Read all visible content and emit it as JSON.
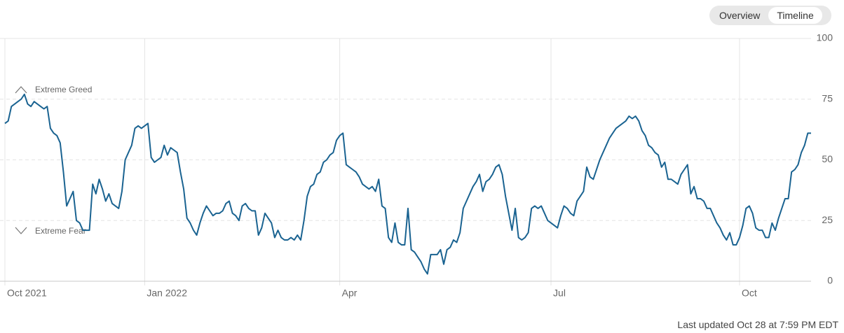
{
  "toggle": [
    "Overview",
    "Timeline"
  ],
  "chart_data": {
    "type": "line",
    "color": "#1a6391",
    "values": [
      65,
      66,
      72,
      73,
      74,
      75,
      77,
      73,
      72,
      74,
      73,
      72,
      71,
      72,
      63,
      61,
      60,
      57,
      45,
      31,
      34,
      37,
      25,
      24,
      21,
      21,
      21,
      40,
      36,
      42,
      38,
      33,
      36,
      32,
      31,
      30,
      37,
      50,
      53,
      56,
      63,
      64,
      63,
      64,
      65,
      51,
      49,
      50,
      51,
      56,
      52,
      55,
      54,
      53,
      45,
      38,
      26,
      24,
      21,
      19,
      24,
      28,
      31,
      29,
      27,
      28,
      28,
      29,
      32,
      33,
      28,
      27,
      25,
      31,
      32,
      30,
      29,
      29,
      19,
      22,
      28,
      26,
      24,
      18,
      21,
      18,
      17,
      17,
      18,
      17,
      19,
      17,
      25,
      35,
      39,
      40,
      44,
      45,
      49,
      50,
      52,
      53,
      58,
      60,
      61,
      48,
      47,
      46,
      45,
      43,
      40,
      39,
      38,
      39,
      37,
      42,
      31,
      30,
      18,
      16,
      24,
      16,
      15,
      15,
      30,
      13,
      12,
      10,
      8,
      5,
      3,
      11,
      11,
      11,
      13,
      7,
      13,
      14,
      17,
      16,
      20,
      30,
      33,
      36,
      39,
      41,
      44,
      37,
      41,
      42,
      44,
      47,
      48,
      44,
      35,
      28,
      21,
      30,
      18,
      17,
      18,
      20,
      30,
      31,
      30,
      31,
      28,
      25,
      24,
      23,
      22,
      27,
      31,
      30,
      28,
      27,
      33,
      35,
      37,
      47,
      43,
      42,
      46,
      50,
      53,
      56,
      59,
      61,
      63,
      64,
      65,
      66,
      68,
      67,
      68,
      66,
      62,
      60,
      56,
      55,
      53,
      52,
      47,
      49,
      42,
      42,
      41,
      40,
      44,
      46,
      48,
      36,
      39,
      34,
      34,
      33,
      30,
      30,
      27,
      24,
      22,
      19,
      17,
      20,
      15,
      15,
      18,
      23,
      30,
      31,
      28,
      22,
      21,
      21,
      18,
      18,
      24,
      21,
      26,
      30,
      34,
      34,
      45,
      46,
      48,
      53,
      56,
      61,
      61
    ],
    "xlim": [
      0,
      248
    ],
    "xticks": [
      {
        "value": 0,
        "label": "Oct 2021"
      },
      {
        "value": 43,
        "label": "Jan 2022"
      },
      {
        "value": 103,
        "label": "Apr"
      },
      {
        "value": 168,
        "label": "Jul"
      },
      {
        "value": 226,
        "label": "Oct"
      }
    ],
    "ylim": [
      0,
      100
    ],
    "yticks": [
      0,
      25,
      50,
      75,
      100
    ],
    "grid": true,
    "annotations": [
      "Extreme Greed",
      "Extreme Fear"
    ]
  },
  "footer": "Last updated Oct 28 at 7:59 PM EDT"
}
